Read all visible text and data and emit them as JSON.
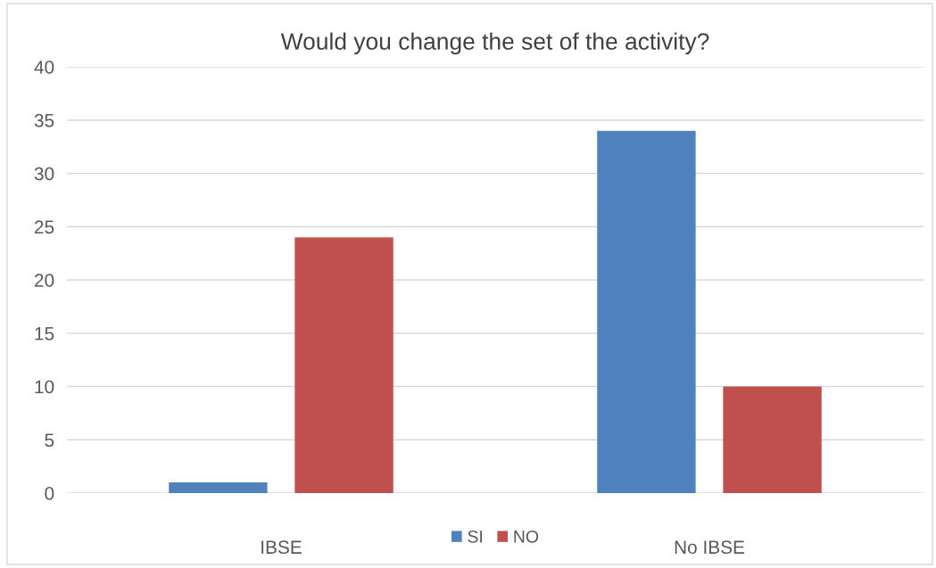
{
  "chart_data": {
    "type": "bar",
    "title": "Would you change the set of the activity?",
    "categories": [
      "IBSE",
      "No IBSE"
    ],
    "series": [
      {
        "name": "SI",
        "color": "#4f81bd",
        "values": [
          1,
          34
        ]
      },
      {
        "name": "NO",
        "color": "#c0504d",
        "values": [
          24,
          10
        ]
      }
    ],
    "ylim": [
      0,
      40
    ],
    "yticks": [
      0,
      5,
      10,
      15,
      20,
      25,
      30,
      35,
      40
    ],
    "grid": "y",
    "legend": "bottom"
  }
}
